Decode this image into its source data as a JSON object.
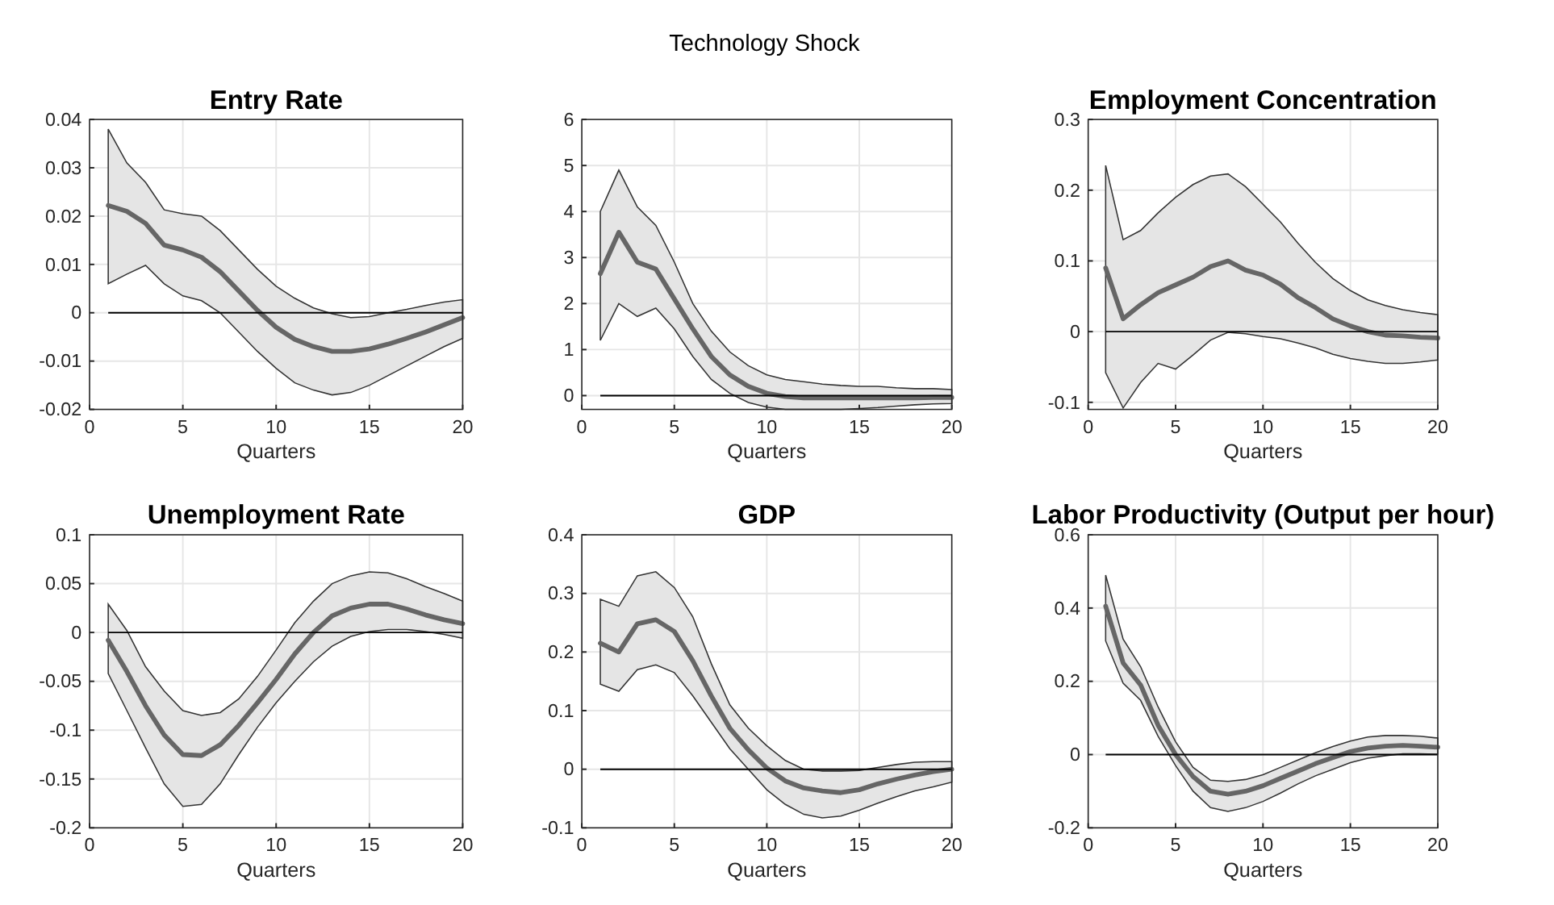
{
  "chart_data": [
    {
      "type": "line",
      "title": "Entry Rate",
      "xlabel": "Quarters",
      "annotations": [
        "Technology Shock"
      ],
      "x": [
        1,
        2,
        3,
        4,
        5,
        6,
        7,
        8,
        9,
        10,
        11,
        12,
        13,
        14,
        15,
        16,
        17,
        18,
        19,
        20
      ],
      "xlim": [
        0,
        20
      ],
      "xticks": [
        0,
        5,
        10,
        15,
        20
      ],
      "ylim": [
        -0.02,
        0.04
      ],
      "yticks": [
        -0.02,
        -0.01,
        0,
        0.01,
        0.02,
        0.03,
        0.04
      ],
      "grid": true,
      "ref_lines": [
        {
          "axis": "y",
          "value": 0,
          "color": "#000000"
        }
      ],
      "series": [
        {
          "color": "#666666",
          "values": [
            0.0222,
            0.021,
            0.0185,
            0.014,
            0.013,
            0.0115,
            0.0085,
            0.0045,
            0.0005,
            -0.003,
            -0.0055,
            -0.007,
            -0.008,
            -0.008,
            -0.0075,
            -0.0065,
            -0.0053,
            -0.004,
            -0.0025,
            -0.001
          ],
          "upper": [
            0.038,
            0.031,
            0.027,
            0.0213,
            0.0205,
            0.02,
            0.017,
            0.013,
            0.009,
            0.0055,
            0.003,
            0.001,
            -0.0002,
            -0.001,
            -0.0008,
            0,
            0.0007,
            0.0015,
            0.0022,
            0.0027
          ],
          "lower": [
            0.006,
            0.008,
            0.0098,
            0.006,
            0.0035,
            0.0025,
            0,
            -0.004,
            -0.008,
            -0.0115,
            -0.0145,
            -0.016,
            -0.017,
            -0.0165,
            -0.015,
            -0.013,
            -0.011,
            -0.009,
            -0.007,
            -0.0053
          ]
        }
      ]
    },
    {
      "type": "line",
      "xlabel": "Quarters",
      "x": [
        1,
        2,
        3,
        4,
        5,
        6,
        7,
        8,
        9,
        10,
        11,
        12,
        13,
        14,
        15,
        16,
        17,
        18,
        19,
        20
      ],
      "xlim": [
        0,
        20
      ],
      "xticks": [
        0,
        5,
        10,
        15,
        20
      ],
      "ylim": [
        -0.3,
        6
      ],
      "yticks": [
        0,
        1,
        2,
        3,
        4,
        5,
        6
      ],
      "grid": true,
      "ref_lines": [
        {
          "axis": "y",
          "value": 0,
          "color": "#000000"
        }
      ],
      "series": [
        {
          "color": "#666666",
          "values": [
            2.65,
            3.55,
            2.9,
            2.75,
            2.1,
            1.45,
            0.85,
            0.45,
            0.2,
            0.05,
            -0.02,
            -0.05,
            -0.05,
            -0.05,
            -0.05,
            -0.05,
            -0.05,
            -0.05,
            -0.04,
            -0.04
          ],
          "upper": [
            4.0,
            4.9,
            4.1,
            3.7,
            2.9,
            2.0,
            1.4,
            0.95,
            0.65,
            0.45,
            0.35,
            0.3,
            0.25,
            0.22,
            0.2,
            0.2,
            0.17,
            0.15,
            0.15,
            0.13
          ],
          "lower": [
            1.2,
            2.0,
            1.72,
            1.9,
            1.45,
            0.85,
            0.35,
            0.05,
            -0.15,
            -0.25,
            -0.3,
            -0.3,
            -0.3,
            -0.3,
            -0.28,
            -0.26,
            -0.23,
            -0.2,
            -0.18,
            -0.17
          ]
        }
      ]
    },
    {
      "type": "line",
      "title": "Employment Concentration",
      "xlabel": "Quarters",
      "x": [
        1,
        2,
        3,
        4,
        5,
        6,
        7,
        8,
        9,
        10,
        11,
        12,
        13,
        14,
        15,
        16,
        17,
        18,
        19,
        20
      ],
      "xlim": [
        0,
        20
      ],
      "xticks": [
        0,
        5,
        10,
        15,
        20
      ],
      "ylim": [
        -0.11,
        0.3
      ],
      "yticks": [
        -0.1,
        0,
        0.1,
        0.2,
        0.3
      ],
      "grid": true,
      "ref_lines": [
        {
          "axis": "y",
          "value": 0,
          "color": "#000000"
        }
      ],
      "series": [
        {
          "color": "#666666",
          "values": [
            0.09,
            0.018,
            0.038,
            0.055,
            0.066,
            0.077,
            0.092,
            0.1,
            0.087,
            0.08,
            0.067,
            0.048,
            0.034,
            0.018,
            0.008,
            0,
            -0.005,
            -0.006,
            -0.008,
            -0.009
          ],
          "upper": [
            0.235,
            0.13,
            0.143,
            0.168,
            0.19,
            0.208,
            0.22,
            0.223,
            0.205,
            0.18,
            0.155,
            0.125,
            0.098,
            0.075,
            0.058,
            0.045,
            0.037,
            0.031,
            0.027,
            0.024
          ],
          "lower": [
            -0.058,
            -0.108,
            -0.072,
            -0.045,
            -0.053,
            -0.033,
            -0.012,
            -0.001,
            -0.003,
            -0.007,
            -0.01,
            -0.016,
            -0.023,
            -0.032,
            -0.038,
            -0.042,
            -0.045,
            -0.045,
            -0.043,
            -0.04
          ]
        }
      ]
    },
    {
      "type": "line",
      "title": "Unemployment Rate",
      "xlabel": "Quarters",
      "x": [
        1,
        2,
        3,
        4,
        5,
        6,
        7,
        8,
        9,
        10,
        11,
        12,
        13,
        14,
        15,
        16,
        17,
        18,
        19,
        20
      ],
      "xlim": [
        0,
        20
      ],
      "xticks": [
        0,
        5,
        10,
        15,
        20
      ],
      "ylim": [
        -0.2,
        0.1
      ],
      "yticks": [
        -0.2,
        -0.15,
        -0.1,
        -0.05,
        0,
        0.05,
        0.1
      ],
      "grid": true,
      "ref_lines": [
        {
          "axis": "y",
          "value": 0,
          "color": "#000000"
        }
      ],
      "series": [
        {
          "color": "#666666",
          "values": [
            -0.008,
            -0.04,
            -0.075,
            -0.105,
            -0.125,
            -0.126,
            -0.115,
            -0.095,
            -0.072,
            -0.048,
            -0.022,
            0,
            0.017,
            0.025,
            0.029,
            0.029,
            0.024,
            0.018,
            0.013,
            0.009
          ],
          "upper": [
            0.029,
            0.002,
            -0.035,
            -0.06,
            -0.08,
            -0.085,
            -0.082,
            -0.068,
            -0.045,
            -0.018,
            0.01,
            0.032,
            0.05,
            0.058,
            0.062,
            0.061,
            0.055,
            0.047,
            0.04,
            0.032
          ],
          "lower": [
            -0.042,
            -0.08,
            -0.118,
            -0.155,
            -0.178,
            -0.176,
            -0.155,
            -0.125,
            -0.097,
            -0.072,
            -0.05,
            -0.03,
            -0.014,
            -0.004,
            0.001,
            0.003,
            0.003,
            0.001,
            -0.002,
            -0.006
          ]
        }
      ]
    },
    {
      "type": "line",
      "title": "GDP",
      "xlabel": "Quarters",
      "x": [
        1,
        2,
        3,
        4,
        5,
        6,
        7,
        8,
        9,
        10,
        11,
        12,
        13,
        14,
        15,
        16,
        17,
        18,
        19,
        20
      ],
      "xlim": [
        0,
        20
      ],
      "xticks": [
        0,
        5,
        10,
        15,
        20
      ],
      "ylim": [
        -0.1,
        0.4
      ],
      "yticks": [
        -0.1,
        0,
        0.1,
        0.2,
        0.3,
        0.4
      ],
      "grid": true,
      "ref_lines": [
        {
          "axis": "y",
          "value": 0,
          "color": "#000000"
        }
      ],
      "series": [
        {
          "color": "#666666",
          "values": [
            0.215,
            0.2,
            0.248,
            0.255,
            0.235,
            0.185,
            0.125,
            0.07,
            0.033,
            0.002,
            -0.02,
            -0.032,
            -0.037,
            -0.04,
            -0.035,
            -0.025,
            -0.017,
            -0.01,
            -0.004,
            0
          ],
          "upper": [
            0.29,
            0.278,
            0.33,
            0.337,
            0.31,
            0.26,
            0.18,
            0.11,
            0.07,
            0.04,
            0.015,
            0,
            -0.003,
            -0.003,
            -0.002,
            0.003,
            0.008,
            0.012,
            0.013,
            0.013
          ],
          "lower": [
            0.145,
            0.133,
            0.17,
            0.178,
            0.165,
            0.125,
            0.08,
            0.035,
            0,
            -0.035,
            -0.06,
            -0.077,
            -0.083,
            -0.08,
            -0.07,
            -0.058,
            -0.047,
            -0.037,
            -0.03,
            -0.022
          ]
        }
      ]
    },
    {
      "type": "line",
      "title": "Labor Productivity (Output per hour)",
      "xlabel": "Quarters",
      "x": [
        1,
        2,
        3,
        4,
        5,
        6,
        7,
        8,
        9,
        10,
        11,
        12,
        13,
        14,
        15,
        16,
        17,
        18,
        19,
        20
      ],
      "xlim": [
        0,
        20
      ],
      "xticks": [
        0,
        5,
        10,
        15,
        20
      ],
      "ylim": [
        -0.2,
        0.6
      ],
      "yticks": [
        -0.2,
        0,
        0.2,
        0.4,
        0.6
      ],
      "grid": true,
      "ref_lines": [
        {
          "axis": "y",
          "value": 0,
          "color": "#000000"
        }
      ],
      "series": [
        {
          "color": "#666666",
          "values": [
            0.405,
            0.25,
            0.19,
            0.08,
            0,
            -0.06,
            -0.1,
            -0.108,
            -0.1,
            -0.085,
            -0.065,
            -0.045,
            -0.025,
            -0.008,
            0.008,
            0.018,
            0.023,
            0.025,
            0.023,
            0.02
          ],
          "upper": [
            0.49,
            0.315,
            0.24,
            0.13,
            0.035,
            -0.035,
            -0.07,
            -0.073,
            -0.068,
            -0.055,
            -0.035,
            -0.015,
            0.005,
            0.022,
            0.037,
            0.048,
            0.052,
            0.052,
            0.05,
            0.045
          ],
          "lower": [
            0.31,
            0.195,
            0.148,
            0.05,
            -0.03,
            -0.1,
            -0.145,
            -0.155,
            -0.145,
            -0.128,
            -0.105,
            -0.08,
            -0.058,
            -0.04,
            -0.022,
            -0.01,
            -0.003,
            0.002,
            0.002,
            0.001
          ]
        }
      ]
    }
  ]
}
